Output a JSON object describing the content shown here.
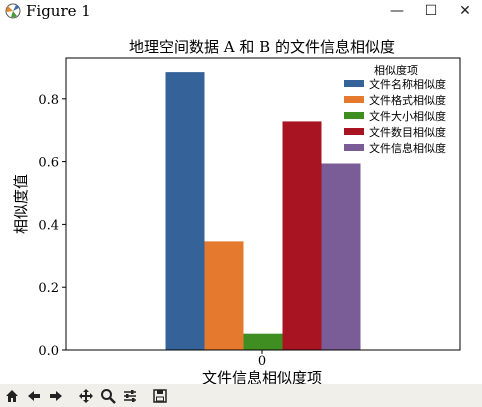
{
  "window": {
    "title": "Figure 1",
    "controls": {
      "minimize": "—",
      "maximize": "☐",
      "close": "✕"
    }
  },
  "toolbar": {
    "buttons": [
      {
        "name": "home-icon"
      },
      {
        "name": "back-arrow-icon"
      },
      {
        "name": "forward-arrow-icon"
      },
      {
        "name": "pan-icon"
      },
      {
        "name": "zoom-icon"
      },
      {
        "name": "configure-subplots-icon"
      },
      {
        "name": "save-icon"
      }
    ]
  },
  "chart_data": {
    "type": "bar",
    "title": "地理空间数据 A 和 B 的文件信息相似度",
    "xlabel": "文件信息相似度项",
    "ylabel": "相似度值",
    "categories": [
      "0"
    ],
    "ylim": [
      0,
      0.93
    ],
    "yticks": [
      "0.0",
      "0.2",
      "0.4",
      "0.6",
      "0.8"
    ],
    "grid": false,
    "legend_title": "相似度项",
    "legend_position": "top-right",
    "series": [
      {
        "name": "文件名称相似度",
        "values": [
          0.885
        ],
        "color": "#346299"
      },
      {
        "name": "文件格式相似度",
        "values": [
          0.346
        ],
        "color": "#e57a2e"
      },
      {
        "name": "文件大小相似度",
        "values": [
          0.052
        ],
        "color": "#3f8e22"
      },
      {
        "name": "文件数目相似度",
        "values": [
          0.728
        ],
        "color": "#a81421"
      },
      {
        "name": "文件信息相似度",
        "values": [
          0.594
        ],
        "color": "#7a5c96"
      }
    ]
  }
}
